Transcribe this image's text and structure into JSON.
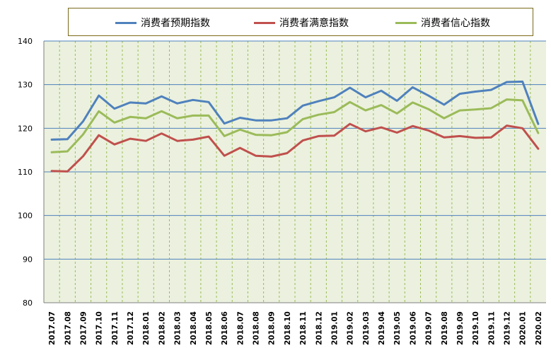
{
  "chart_data": {
    "type": "line",
    "title": "",
    "xlabel": "",
    "ylabel": "",
    "ylim": [
      80,
      140
    ],
    "yticks": [
      80,
      90,
      100,
      110,
      120,
      130,
      140
    ],
    "grid": true,
    "legend_position": "top",
    "categories": [
      "2017.07",
      "2017.08",
      "2017.09",
      "2017.10",
      "2017.11",
      "2017.12",
      "2018.01",
      "2018.02",
      "2018.03",
      "2018.04",
      "2018.05",
      "2018.06",
      "2018.07",
      "2018.08",
      "2018.09",
      "2018.10",
      "2018.11",
      "2018.12",
      "2019.01",
      "2019.02",
      "2019.03",
      "2019.04",
      "2019.05",
      "2019.06",
      "2019.07",
      "2019.08",
      "2019.09",
      "2019.10",
      "2019.11",
      "2019.12",
      "2020.01",
      "2020.02"
    ],
    "series": [
      {
        "name": "消费者预期指数",
        "color": "#4f81bd",
        "values": [
          117.4,
          117.5,
          121.6,
          127.5,
          124.5,
          125.9,
          125.7,
          127.3,
          125.7,
          126.5,
          126.0,
          121.1,
          122.4,
          121.8,
          121.8,
          122.3,
          125.2,
          126.2,
          127.1,
          129.3,
          127.1,
          128.6,
          126.3,
          129.4,
          127.5,
          125.4,
          127.9,
          128.4,
          128.8,
          130.6,
          130.7,
          121.0
        ]
      },
      {
        "name": "消费者满意指数",
        "color": "#c0504d",
        "values": [
          110.2,
          110.1,
          113.6,
          118.4,
          116.3,
          117.6,
          117.1,
          118.8,
          117.1,
          117.4,
          118.1,
          113.7,
          115.5,
          113.7,
          113.5,
          114.3,
          117.2,
          118.2,
          118.3,
          121.0,
          119.3,
          120.2,
          119.0,
          120.5,
          119.5,
          117.9,
          118.2,
          117.8,
          117.9,
          120.6,
          120.0,
          115.3
        ]
      },
      {
        "name": "消费者信心指数",
        "color": "#9bbb59",
        "values": [
          114.5,
          114.7,
          118.6,
          123.9,
          121.3,
          122.6,
          122.3,
          123.9,
          122.3,
          122.9,
          122.9,
          118.2,
          119.7,
          118.5,
          118.4,
          119.1,
          122.1,
          123.1,
          123.7,
          126.0,
          124.1,
          125.3,
          123.4,
          125.9,
          124.4,
          122.3,
          124.1,
          124.3,
          124.6,
          126.6,
          126.4,
          118.9
        ]
      }
    ]
  }
}
